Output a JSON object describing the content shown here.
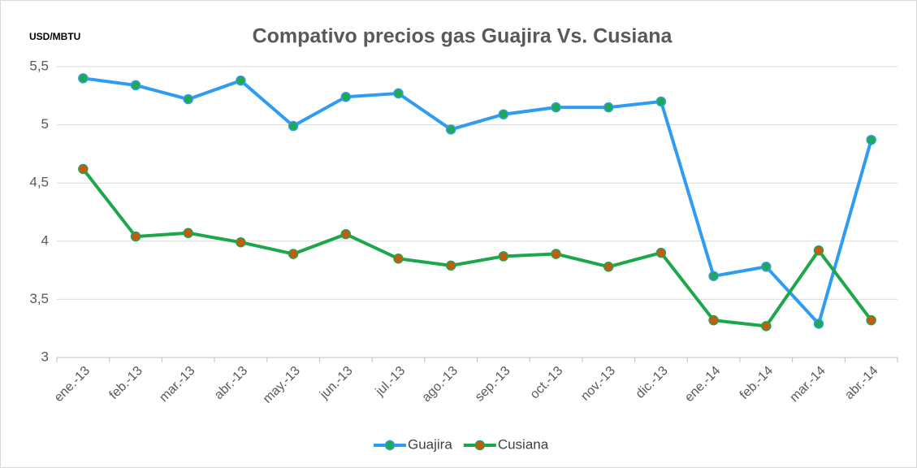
{
  "chart_data": {
    "type": "line",
    "title": "Compativo precios gas Guajira Vs. Cusiana",
    "y_axis_label": "USD/MBTU",
    "categories": [
      "ene.-13",
      "feb.-13",
      "mar.-13",
      "abr.-13",
      "may.-13",
      "jun.-13",
      "jul.-13",
      "ago.-13",
      "sep.-13",
      "oct.-13",
      "nov.-13",
      "dic.-13",
      "ene.-14",
      "feb.-14",
      "mar.-14",
      "abr.-14"
    ],
    "series": [
      {
        "name": "Guajira",
        "color": "#2e9cf3",
        "marker_color": "#21a94f",
        "values": [
          5.4,
          5.34,
          5.22,
          5.38,
          4.99,
          5.24,
          5.27,
          4.96,
          5.09,
          5.15,
          5.15,
          5.2,
          3.7,
          3.78,
          3.29,
          4.87
        ]
      },
      {
        "name": "Cusiana",
        "color": "#1ea64a",
        "marker_color": "#c55a11",
        "values": [
          4.62,
          4.04,
          4.07,
          3.99,
          3.89,
          4.06,
          3.85,
          3.79,
          3.87,
          3.89,
          3.78,
          3.9,
          3.32,
          3.27,
          3.92,
          3.32
        ]
      }
    ],
    "ylim": [
      3,
      5.5
    ],
    "yticks": [
      3,
      {
        "value": 3.5,
        "label": "3,5"
      },
      4,
      {
        "value": 4.5,
        "label": "4,5"
      },
      5,
      {
        "value": 5.5,
        "label": "5,5"
      }
    ],
    "grid": true,
    "legend": "bottom"
  }
}
